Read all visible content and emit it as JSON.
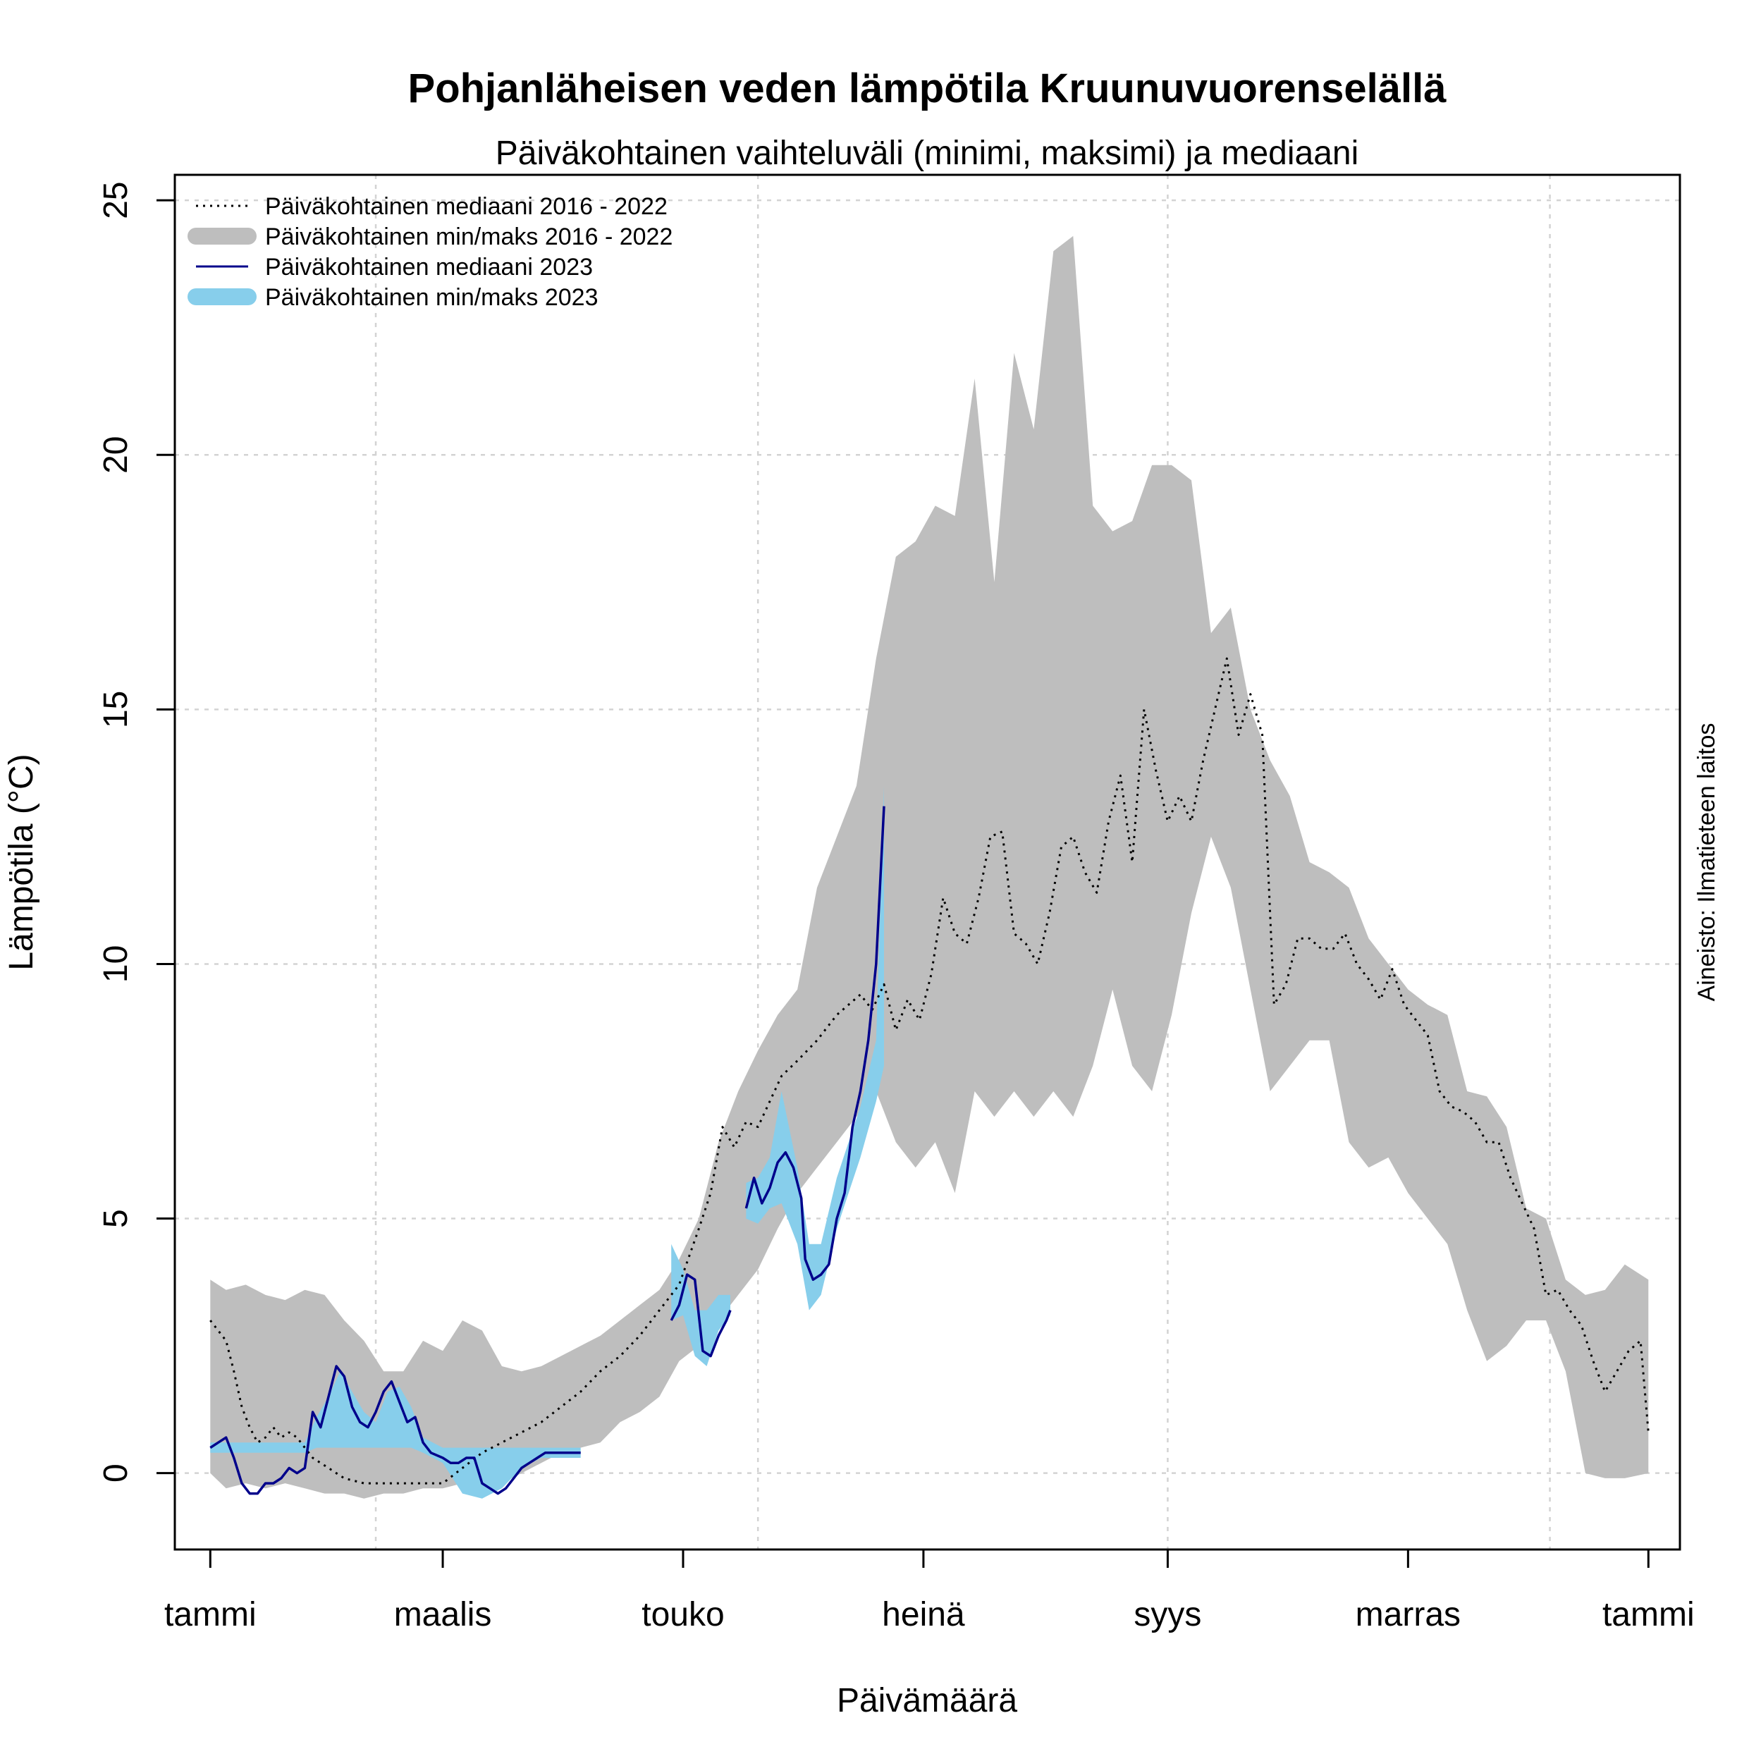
{
  "chart_data": {
    "type": "area",
    "title": "Pohjanläheisen veden lämpötila Kruunuvuorenselällä",
    "subtitle": "Päiväkohtainen vaihteluväli (minimi, maksimi) ja mediaani",
    "xlabel": "Päivämäärä",
    "ylabel": "Lämpötila (°C)",
    "source": "Aineisto: Ilmatieteen laitos",
    "xlim": [
      -8,
      374
    ],
    "ylim": [
      -1.5,
      25.5
    ],
    "grid": true,
    "legend_position": "top-left",
    "y_ticks": [
      0,
      5,
      10,
      15,
      20,
      25
    ],
    "x_ticks": [
      {
        "day": 1,
        "label": "tammi"
      },
      {
        "day": 60,
        "label": "maalis"
      },
      {
        "day": 121,
        "label": "touko"
      },
      {
        "day": 182,
        "label": "heinä"
      },
      {
        "day": 244,
        "label": "syys"
      },
      {
        "day": 305,
        "label": "marras"
      },
      {
        "day": 366,
        "label": "tammi"
      }
    ],
    "x_grid": [
      43,
      140,
      244,
      341
    ],
    "legend": [
      {
        "label": "Päiväkohtainen mediaani 2016 - 2022",
        "style": "dotted",
        "color": "#000000"
      },
      {
        "label": "Päiväkohtainen min/maks 2016 - 2022",
        "style": "band",
        "color": "#bebebe"
      },
      {
        "label": "Päiväkohtainen mediaani 2023",
        "style": "solid",
        "color": "#00008b"
      },
      {
        "label": "Päiväkohtainen min/maks 2023",
        "style": "band",
        "color": "#87ceeb"
      }
    ],
    "series": [
      {
        "name": "Päiväkohtainen min/maks 2016 - 2022",
        "kind": "band",
        "color": "#bebebe",
        "x": [
          1,
          5,
          10,
          15,
          20,
          25,
          30,
          35,
          40,
          45,
          50,
          55,
          60,
          65,
          70,
          75,
          80,
          85,
          90,
          95,
          100,
          105,
          110,
          115,
          120,
          125,
          130,
          135,
          140,
          145,
          150,
          155,
          160,
          165,
          170,
          175,
          180,
          185,
          190,
          195,
          200,
          205,
          210,
          215,
          220,
          225,
          230,
          235,
          240,
          245,
          250,
          255,
          260,
          265,
          270,
          275,
          280,
          285,
          290,
          295,
          300,
          305,
          310,
          315,
          320,
          325,
          330,
          335,
          340,
          345,
          350,
          355,
          360,
          366
        ],
        "max": [
          3.8,
          3.6,
          3.7,
          3.5,
          3.4,
          3.6,
          3.5,
          3.0,
          2.6,
          2.0,
          2.0,
          2.6,
          2.4,
          3.0,
          2.8,
          2.1,
          2.0,
          2.1,
          2.3,
          2.5,
          2.7,
          3.0,
          3.3,
          3.6,
          4.2,
          5.0,
          6.5,
          7.5,
          8.3,
          9.0,
          9.5,
          11.5,
          12.5,
          13.5,
          16.0,
          18.0,
          18.3,
          19.0,
          18.8,
          21.5,
          17.5,
          22.0,
          20.5,
          24.0,
          24.3,
          19.0,
          18.5,
          18.7,
          19.8,
          19.8,
          19.5,
          16.5,
          17.0,
          15.0,
          14.0,
          13.3,
          12.0,
          11.8,
          11.5,
          10.5,
          10.0,
          9.5,
          9.2,
          9.0,
          7.5,
          7.4,
          6.8,
          5.2,
          5.0,
          3.8,
          3.5,
          3.6,
          4.1,
          3.8
        ],
        "min": [
          0.0,
          -0.3,
          -0.2,
          -0.3,
          -0.2,
          -0.3,
          -0.4,
          -0.4,
          -0.5,
          -0.4,
          -0.4,
          -0.3,
          -0.3,
          -0.2,
          -0.3,
          -0.2,
          0.0,
          0.2,
          0.4,
          0.5,
          0.6,
          1.0,
          1.2,
          1.5,
          2.2,
          2.5,
          3.0,
          3.5,
          4.0,
          4.8,
          5.5,
          6.0,
          6.5,
          7.0,
          7.5,
          6.5,
          6.0,
          6.5,
          5.5,
          7.5,
          7.0,
          7.5,
          7.0,
          7.5,
          7.0,
          8.0,
          9.5,
          8.0,
          7.5,
          9.0,
          11.0,
          12.5,
          11.5,
          9.5,
          7.5,
          8.0,
          8.5,
          8.5,
          6.5,
          6.0,
          6.2,
          5.5,
          5.0,
          4.5,
          3.2,
          2.2,
          2.5,
          3.0,
          3.0,
          2.0,
          0.0,
          -0.1,
          -0.1,
          0.0
        ]
      },
      {
        "name": "Päiväkohtainen min/maks 2023",
        "kind": "band",
        "color": "#87ceeb",
        "segments": [
          {
            "x": [
              1,
              5,
              10,
              15,
              20,
              25,
              28,
              31,
              34,
              37,
              40,
              43,
              46,
              49,
              52,
              55,
              60,
              65,
              70,
              75,
              80,
              85,
              90,
              95
            ],
            "max": [
              0.6,
              0.6,
              0.6,
              0.6,
              0.6,
              0.6,
              1.1,
              1.5,
              2.0,
              1.6,
              1.2,
              1.0,
              1.6,
              1.7,
              1.3,
              0.7,
              0.5,
              0.5,
              0.5,
              0.5,
              0.5,
              0.5,
              0.5,
              0.5
            ],
            "min": [
              0.4,
              0.4,
              0.4,
              0.4,
              0.4,
              0.4,
              0.5,
              0.5,
              0.5,
              0.5,
              0.5,
              0.5,
              0.5,
              0.5,
              0.5,
              0.4,
              0.2,
              -0.4,
              -0.5,
              -0.3,
              0.1,
              0.3,
              0.3,
              0.3
            ]
          },
          {
            "x": [
              118,
              121,
              124,
              127,
              130,
              133
            ],
            "max": [
              4.5,
              4.0,
              3.2,
              3.2,
              3.5,
              3.5
            ],
            "min": [
              3.0,
              3.1,
              2.3,
              2.1,
              2.8,
              3.1
            ]
          },
          {
            "x": [
              137,
              140,
              143,
              146,
              150,
              153,
              156,
              160,
              163,
              166,
              170,
              172
            ],
            "max": [
              5.7,
              5.8,
              6.2,
              7.5,
              6.0,
              4.5,
              4.5,
              5.8,
              6.5,
              7.2,
              8.5,
              13.5
            ],
            "min": [
              5.0,
              4.9,
              5.2,
              5.3,
              4.5,
              3.2,
              3.5,
              4.8,
              5.5,
              6.2,
              7.3,
              8.0
            ]
          }
        ]
      },
      {
        "name": "Päiväkohtainen mediaani 2016 - 2022",
        "kind": "line",
        "style": "dotted",
        "color": "#000000",
        "x": [
          1,
          3,
          5,
          7,
          9,
          11,
          13,
          15,
          17,
          19,
          21,
          23,
          25,
          27,
          29,
          31,
          33,
          35,
          40,
          45,
          50,
          55,
          60,
          65,
          70,
          75,
          80,
          85,
          90,
          95,
          100,
          105,
          110,
          115,
          120,
          125,
          128,
          131,
          134,
          137,
          140,
          143,
          146,
          150,
          155,
          160,
          163,
          166,
          169,
          172,
          175,
          178,
          181,
          184,
          187,
          190,
          193,
          196,
          199,
          202,
          205,
          208,
          211,
          214,
          217,
          220,
          223,
          226,
          229,
          232,
          235,
          238,
          241,
          244,
          247,
          250,
          253,
          256,
          259,
          262,
          265,
          268,
          271,
          274,
          277,
          280,
          283,
          286,
          289,
          292,
          295,
          298,
          301,
          304,
          307,
          310,
          313,
          316,
          319,
          322,
          325,
          328,
          331,
          334,
          337,
          340,
          343,
          346,
          349,
          352,
          355,
          358,
          361,
          364,
          366
        ],
        "values": [
          3.0,
          2.8,
          2.6,
          2.0,
          1.3,
          0.9,
          0.6,
          0.7,
          0.9,
          0.7,
          0.8,
          0.7,
          0.5,
          0.3,
          0.2,
          0.1,
          0.0,
          -0.1,
          -0.2,
          -0.2,
          -0.2,
          -0.2,
          -0.2,
          0.1,
          0.4,
          0.6,
          0.8,
          1.0,
          1.3,
          1.6,
          2.0,
          2.3,
          2.7,
          3.2,
          3.7,
          4.8,
          5.5,
          6.8,
          6.4,
          6.9,
          6.8,
          7.3,
          7.8,
          8.1,
          8.5,
          9.0,
          9.2,
          9.4,
          9.1,
          9.6,
          8.7,
          9.3,
          8.9,
          9.8,
          11.3,
          10.6,
          10.4,
          11.3,
          12.5,
          12.6,
          10.6,
          10.4,
          10.0,
          11.0,
          12.3,
          12.5,
          11.8,
          11.4,
          12.8,
          13.7,
          12.0,
          15.0,
          13.8,
          12.8,
          13.3,
          12.8,
          14.0,
          15.0,
          16.0,
          14.5,
          15.3,
          14.5,
          9.2,
          9.6,
          10.5,
          10.5,
          10.3,
          10.3,
          10.6,
          10.0,
          9.7,
          9.3,
          9.9,
          9.2,
          8.9,
          8.6,
          7.5,
          7.2,
          7.1,
          6.9,
          6.5,
          6.5,
          5.8,
          5.3,
          4.8,
          3.5,
          3.6,
          3.2,
          2.9,
          2.2,
          1.6,
          2.0,
          2.4,
          2.6,
          0.8
        ]
      },
      {
        "name": "Päiväkohtainen mediaani 2023",
        "kind": "line",
        "style": "solid",
        "color": "#00008b",
        "segments": [
          {
            "x": [
              1,
              3,
              5,
              7,
              9,
              11,
              13,
              15,
              17,
              19,
              21,
              23,
              25,
              27,
              29,
              31,
              33,
              35,
              37,
              39,
              41,
              43,
              45,
              47,
              49,
              51,
              53,
              55,
              57,
              60,
              62,
              64,
              66,
              68,
              70,
              72,
              74,
              76,
              78,
              80,
              82,
              84,
              86,
              88,
              90,
              92,
              94,
              95
            ],
            "values": [
              0.5,
              0.6,
              0.7,
              0.3,
              -0.2,
              -0.4,
              -0.4,
              -0.2,
              -0.2,
              -0.1,
              0.1,
              0.0,
              0.1,
              1.2,
              0.9,
              1.5,
              2.1,
              1.9,
              1.3,
              1.0,
              0.9,
              1.2,
              1.6,
              1.8,
              1.4,
              1.0,
              1.1,
              0.6,
              0.4,
              0.3,
              0.2,
              0.2,
              0.3,
              0.3,
              -0.2,
              -0.3,
              -0.4,
              -0.3,
              -0.1,
              0.1,
              0.2,
              0.3,
              0.4,
              0.4,
              0.4,
              0.4,
              0.4,
              0.4
            ]
          },
          {
            "x": [
              118,
              120,
              122,
              124,
              126,
              128,
              130,
              132,
              133
            ],
            "values": [
              3.0,
              3.3,
              3.9,
              3.8,
              2.4,
              2.3,
              2.7,
              3.0,
              3.2
            ]
          },
          {
            "x": [
              137,
              139,
              141,
              143,
              145,
              147,
              149,
              151,
              152,
              154,
              156,
              158,
              160,
              162,
              164,
              166,
              168,
              170,
              172
            ],
            "values": [
              5.2,
              5.8,
              5.3,
              5.6,
              6.1,
              6.3,
              6.0,
              5.4,
              4.2,
              3.8,
              3.9,
              4.1,
              5.0,
              5.5,
              6.8,
              7.5,
              8.5,
              10.0,
              13.1
            ]
          }
        ]
      }
    ]
  }
}
